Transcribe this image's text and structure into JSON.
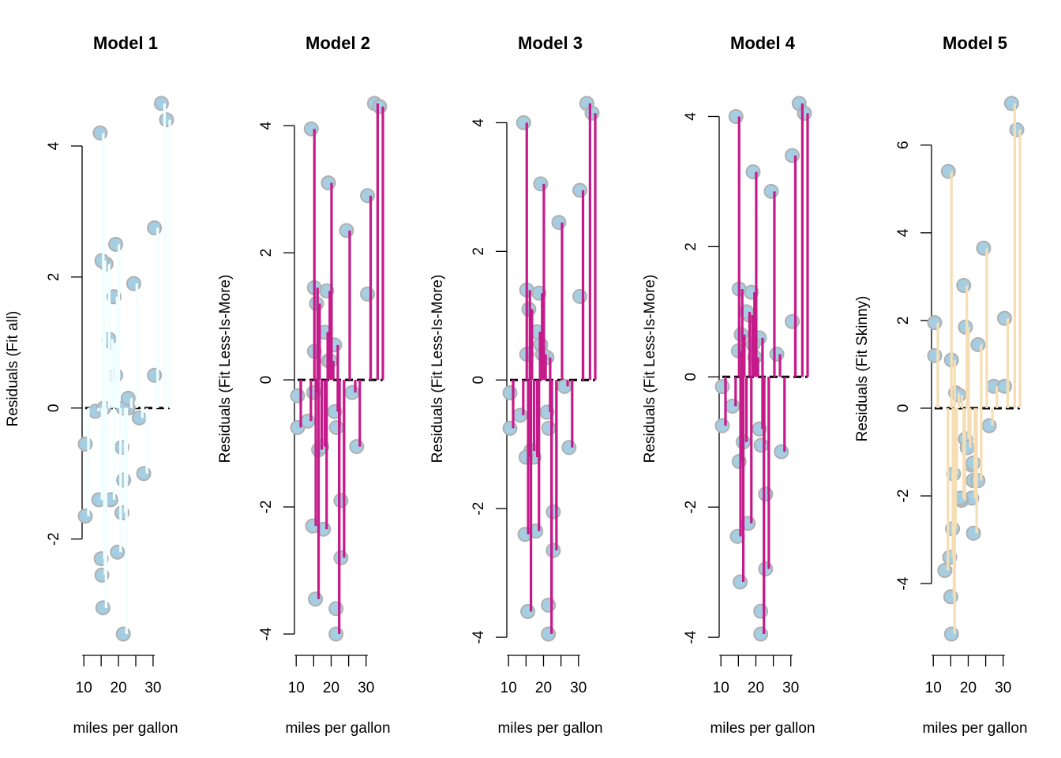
{
  "chart_data": [
    {
      "type": "scatter",
      "title": "Model 1",
      "xlabel": "miles per gallon",
      "ylabel": "Residuals (Fit all)",
      "yticks": [
        -2,
        0,
        2,
        4
      ],
      "xticks": [
        10,
        20,
        30
      ],
      "xlim": [
        10.4,
        33.9
      ],
      "ylim": [
        -3.45,
        4.65
      ],
      "segment_color": "#F0FFFF",
      "point_color": "#A6CEE3",
      "points": [
        {
          "x": 21.0,
          "y": -0.6
        },
        {
          "x": 21.0,
          "y": -1.6
        },
        {
          "x": 22.8,
          "y": 0.0
        },
        {
          "x": 21.4,
          "y": 0.0
        },
        {
          "x": 18.7,
          "y": 1.7
        },
        {
          "x": 18.1,
          "y": 1.0
        },
        {
          "x": 14.3,
          "y": -1.4
        },
        {
          "x": 24.4,
          "y": 1.9
        },
        {
          "x": 22.8,
          "y": 0.15
        },
        {
          "x": 19.2,
          "y": 0.5
        },
        {
          "x": 17.8,
          "y": -1.4
        },
        {
          "x": 16.4,
          "y": 2.2
        },
        {
          "x": 17.3,
          "y": 1.05
        },
        {
          "x": 15.2,
          "y": 2.25
        },
        {
          "x": 10.4,
          "y": -0.55
        },
        {
          "x": 10.4,
          "y": -1.65
        },
        {
          "x": 14.7,
          "y": 4.2
        },
        {
          "x": 32.4,
          "y": 4.65
        },
        {
          "x": 30.4,
          "y": 2.75
        },
        {
          "x": 33.9,
          "y": 4.4
        },
        {
          "x": 21.5,
          "y": -1.1
        },
        {
          "x": 15.5,
          "y": -3.05
        },
        {
          "x": 15.2,
          "y": -2.55
        },
        {
          "x": 13.3,
          "y": -0.05
        },
        {
          "x": 19.2,
          "y": 2.5
        },
        {
          "x": 27.3,
          "y": -1.0
        },
        {
          "x": 26.0,
          "y": -0.15
        },
        {
          "x": 30.4,
          "y": 0.5
        },
        {
          "x": 15.8,
          "y": 0.0
        },
        {
          "x": 19.7,
          "y": -2.2
        },
        {
          "x": 15.0,
          "y": -2.3
        },
        {
          "x": 21.4,
          "y": -3.45
        }
      ]
    },
    {
      "type": "scatter",
      "title": "Model 2",
      "xlabel": "miles per gallon",
      "ylabel": "Residuals (Fit Less-Is-More)",
      "yticks": [
        -4,
        -2,
        0,
        2,
        4
      ],
      "xticks": [
        10,
        20,
        30
      ],
      "xlim": [
        10.4,
        33.9
      ],
      "ylim": [
        -4.0,
        4.35
      ],
      "segment_color": "#C51B8A",
      "point_color": "#A6CEE3",
      "points": [
        {
          "x": 21.0,
          "y": 0.55
        },
        {
          "x": 21.0,
          "y": -0.5
        },
        {
          "x": 22.8,
          "y": -2.8
        },
        {
          "x": 21.4,
          "y": -3.6
        },
        {
          "x": 18.7,
          "y": 1.4
        },
        {
          "x": 18.1,
          "y": 0.75
        },
        {
          "x": 14.3,
          "y": 3.95
        },
        {
          "x": 24.4,
          "y": 2.35
        },
        {
          "x": 22.8,
          "y": -1.9
        },
        {
          "x": 19.2,
          "y": 0.3
        },
        {
          "x": 17.8,
          "y": -2.35
        },
        {
          "x": 16.4,
          "y": -1.1
        },
        {
          "x": 17.3,
          "y": -1.05
        },
        {
          "x": 15.2,
          "y": 1.45
        },
        {
          "x": 10.4,
          "y": -0.25
        },
        {
          "x": 10.4,
          "y": -0.75
        },
        {
          "x": 14.7,
          "y": -2.3
        },
        {
          "x": 32.4,
          "y": 4.35
        },
        {
          "x": 30.4,
          "y": 2.9
        },
        {
          "x": 33.9,
          "y": 4.3
        },
        {
          "x": 21.5,
          "y": -0.75
        },
        {
          "x": 15.5,
          "y": -3.45
        },
        {
          "x": 15.2,
          "y": 0.45
        },
        {
          "x": 13.3,
          "y": -0.65
        },
        {
          "x": 19.2,
          "y": 3.1
        },
        {
          "x": 27.3,
          "y": -1.05
        },
        {
          "x": 26.0,
          "y": -0.2
        },
        {
          "x": 30.4,
          "y": 1.35
        },
        {
          "x": 15.8,
          "y": 1.2
        },
        {
          "x": 19.7,
          "y": 0.3
        },
        {
          "x": 15.0,
          "y": -0.2
        },
        {
          "x": 21.4,
          "y": -4.0
        }
      ]
    },
    {
      "type": "scatter",
      "title": "Model 3",
      "xlabel": "miles per gallon",
      "ylabel": "Residuals (Fit Less-Is-More)",
      "yticks": [
        -4,
        -2,
        0,
        2,
        4
      ],
      "xticks": [
        10,
        20,
        30
      ],
      "xlim": [
        10.4,
        33.9
      ],
      "ylim": [
        -3.95,
        4.3
      ],
      "segment_color": "#C51B8A",
      "point_color": "#A6CEE3",
      "points": [
        {
          "x": 21.0,
          "y": 0.35
        },
        {
          "x": 21.0,
          "y": -0.5
        },
        {
          "x": 22.8,
          "y": -2.05
        },
        {
          "x": 21.4,
          "y": -3.5
        },
        {
          "x": 18.7,
          "y": 1.35
        },
        {
          "x": 18.1,
          "y": 0.75
        },
        {
          "x": 14.3,
          "y": 4.0
        },
        {
          "x": 24.4,
          "y": 2.45
        },
        {
          "x": 22.8,
          "y": -2.65
        },
        {
          "x": 19.2,
          "y": 0.55
        },
        {
          "x": 17.8,
          "y": -2.35
        },
        {
          "x": 16.4,
          "y": -1.1
        },
        {
          "x": 17.3,
          "y": -1.2
        },
        {
          "x": 15.2,
          "y": 1.4
        },
        {
          "x": 10.4,
          "y": -0.2
        },
        {
          "x": 10.4,
          "y": -0.75
        },
        {
          "x": 14.7,
          "y": -2.4
        },
        {
          "x": 32.4,
          "y": 4.3
        },
        {
          "x": 30.4,
          "y": 2.95
        },
        {
          "x": 33.9,
          "y": 4.15
        },
        {
          "x": 21.5,
          "y": -0.75
        },
        {
          "x": 15.5,
          "y": -3.6
        },
        {
          "x": 15.2,
          "y": 0.4
        },
        {
          "x": 13.3,
          "y": -0.55
        },
        {
          "x": 19.2,
          "y": 3.05
        },
        {
          "x": 27.3,
          "y": -1.05
        },
        {
          "x": 26.0,
          "y": -0.1
        },
        {
          "x": 30.4,
          "y": 1.3
        },
        {
          "x": 15.8,
          "y": 1.1
        },
        {
          "x": 19.7,
          "y": 0.4
        },
        {
          "x": 15.0,
          "y": -1.2
        },
        {
          "x": 21.4,
          "y": -3.95
        }
      ]
    },
    {
      "type": "scatter",
      "title": "Model 4",
      "xlabel": "miles per gallon",
      "ylabel": "Residuals (Fit Less-Is-More)",
      "yticks": [
        -4,
        -2,
        0,
        2,
        4
      ],
      "xticks": [
        10,
        20,
        30
      ],
      "xlim": [
        10.4,
        33.9
      ],
      "ylim": [
        -3.95,
        4.2
      ],
      "segment_color": "#C51B8A",
      "point_color": "#A6CEE3",
      "points": [
        {
          "x": 21.0,
          "y": 0.6
        },
        {
          "x": 21.0,
          "y": -0.8
        },
        {
          "x": 22.8,
          "y": -1.8
        },
        {
          "x": 21.4,
          "y": -3.6
        },
        {
          "x": 18.7,
          "y": 1.3
        },
        {
          "x": 18.1,
          "y": 0.95
        },
        {
          "x": 14.3,
          "y": 4.0
        },
        {
          "x": 24.4,
          "y": 2.85
        },
        {
          "x": 22.8,
          "y": -2.95
        },
        {
          "x": 19.2,
          "y": 0.5
        },
        {
          "x": 17.8,
          "y": -2.25
        },
        {
          "x": 16.4,
          "y": -1.0
        },
        {
          "x": 17.3,
          "y": 1.0
        },
        {
          "x": 15.2,
          "y": 1.35
        },
        {
          "x": 10.4,
          "y": -0.15
        },
        {
          "x": 10.4,
          "y": -0.75
        },
        {
          "x": 14.7,
          "y": -2.45
        },
        {
          "x": 32.4,
          "y": 4.2
        },
        {
          "x": 30.4,
          "y": 3.4
        },
        {
          "x": 33.9,
          "y": 4.05
        },
        {
          "x": 21.5,
          "y": -1.05
        },
        {
          "x": 15.5,
          "y": -3.15
        },
        {
          "x": 15.2,
          "y": -1.3
        },
        {
          "x": 13.3,
          "y": -0.45
        },
        {
          "x": 19.2,
          "y": 3.15
        },
        {
          "x": 27.3,
          "y": -1.15
        },
        {
          "x": 26.0,
          "y": 0.35
        },
        {
          "x": 30.4,
          "y": 0.85
        },
        {
          "x": 15.8,
          "y": 0.65
        },
        {
          "x": 19.7,
          "y": 0.3
        },
        {
          "x": 15.0,
          "y": 0.4
        },
        {
          "x": 21.4,
          "y": -3.95
        }
      ]
    },
    {
      "type": "scatter",
      "title": "Model 5",
      "xlabel": "miles per gallon",
      "ylabel": "Residuals (Fit Skinny)",
      "yticks": [
        -4,
        -2,
        0,
        2,
        4,
        6
      ],
      "xticks": [
        10,
        20,
        30
      ],
      "xlim": [
        10.4,
        33.9
      ],
      "ylim": [
        -5.15,
        6.95
      ],
      "segment_color": "#F5DEB3",
      "point_color": "#A6CEE3",
      "points": [
        {
          "x": 21.0,
          "y": -2.05
        },
        {
          "x": 21.0,
          "y": -1.3
        },
        {
          "x": 22.8,
          "y": 1.45
        },
        {
          "x": 21.4,
          "y": -1.65
        },
        {
          "x": 18.7,
          "y": 2.8
        },
        {
          "x": 18.1,
          "y": -2.1
        },
        {
          "x": 14.3,
          "y": 5.4
        },
        {
          "x": 24.4,
          "y": 3.65
        },
        {
          "x": 22.8,
          "y": -1.65
        },
        {
          "x": 19.2,
          "y": -0.7
        },
        {
          "x": 17.8,
          "y": -2.05
        },
        {
          "x": 16.4,
          "y": 0.35
        },
        {
          "x": 17.3,
          "y": 0.3
        },
        {
          "x": 15.2,
          "y": 1.1
        },
        {
          "x": 10.4,
          "y": 1.95
        },
        {
          "x": 10.4,
          "y": 1.2
        },
        {
          "x": 14.7,
          "y": -3.4
        },
        {
          "x": 32.4,
          "y": 6.95
        },
        {
          "x": 30.4,
          "y": 2.05
        },
        {
          "x": 33.9,
          "y": 6.35
        },
        {
          "x": 21.5,
          "y": -2.85
        },
        {
          "x": 15.5,
          "y": -2.75
        },
        {
          "x": 15.2,
          "y": -5.15
        },
        {
          "x": 13.3,
          "y": -3.7
        },
        {
          "x": 19.2,
          "y": 1.85
        },
        {
          "x": 27.3,
          "y": 0.5
        },
        {
          "x": 26.0,
          "y": -0.4
        },
        {
          "x": 30.4,
          "y": 0.5
        },
        {
          "x": 15.8,
          "y": -1.5
        },
        {
          "x": 19.7,
          "y": -0.9
        },
        {
          "x": 15.0,
          "y": -4.3
        },
        {
          "x": 21.4,
          "y": -1.25
        }
      ]
    }
  ]
}
